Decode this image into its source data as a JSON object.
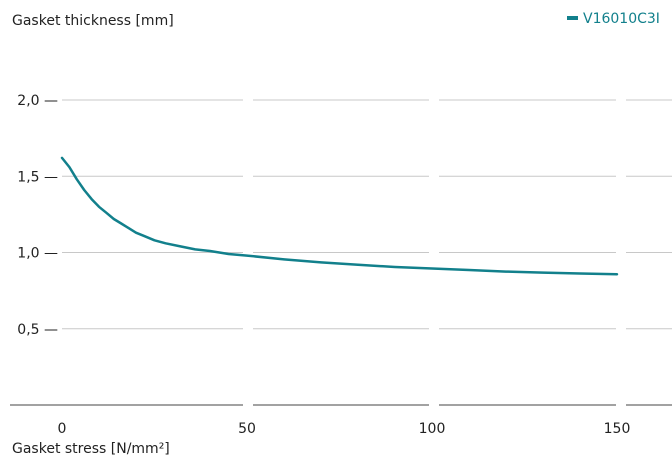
{
  "chart_data": {
    "type": "line",
    "title": "",
    "ylabel": "Gasket thickness [mm]",
    "xlabel": "Gasket stress [N/mm²]",
    "xlim": [
      0,
      150
    ],
    "ylim": [
      0,
      2.5
    ],
    "x_ticks": [
      {
        "value": 0,
        "label": "0"
      },
      {
        "value": 50,
        "label": "50"
      },
      {
        "value": 100,
        "label": "100"
      },
      {
        "value": 150,
        "label": "150"
      }
    ],
    "y_ticks": [
      {
        "value": 2.0,
        "label": "2,0 —"
      },
      {
        "value": 1.5,
        "label": "1,5 —"
      },
      {
        "value": 1.0,
        "label": "1,0 —"
      },
      {
        "value": 0.5,
        "label": "0,5 —"
      }
    ],
    "grid": true,
    "legend_position": "top-right",
    "series": [
      {
        "name": "V16010C3I",
        "color": "#12808c",
        "x": [
          0,
          2,
          4,
          6,
          8,
          10,
          12,
          14,
          16,
          18,
          20,
          22,
          25,
          28,
          32,
          36,
          40,
          45,
          50,
          60,
          70,
          80,
          90,
          100,
          110,
          120,
          130,
          140,
          150
        ],
        "y": [
          1.62,
          1.56,
          1.48,
          1.41,
          1.35,
          1.3,
          1.26,
          1.22,
          1.19,
          1.16,
          1.13,
          1.11,
          1.08,
          1.06,
          1.04,
          1.02,
          1.01,
          0.99,
          0.98,
          0.955,
          0.935,
          0.92,
          0.905,
          0.895,
          0.885,
          0.875,
          0.868,
          0.862,
          0.858
        ]
      }
    ]
  }
}
